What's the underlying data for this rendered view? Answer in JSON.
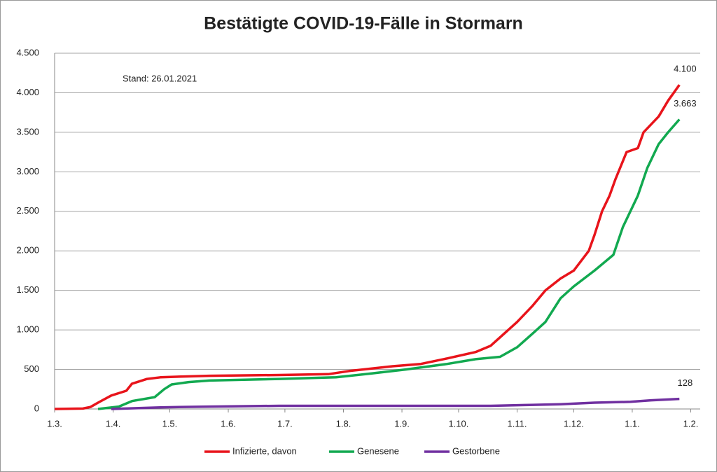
{
  "chart_data": {
    "type": "line",
    "title": "Bestätigte COVID-19-Fälle in Stormarn",
    "annotation": "Stand: 26.01.2021",
    "xlim": [
      0,
      342
    ],
    "xticks": [
      {
        "value": 0,
        "label": "1.3."
      },
      {
        "value": 31,
        "label": "1.4."
      },
      {
        "value": 61,
        "label": "1.5."
      },
      {
        "value": 92,
        "label": "1.6."
      },
      {
        "value": 122,
        "label": "1.7."
      },
      {
        "value": 153,
        "label": "1.8."
      },
      {
        "value": 184,
        "label": "1.9."
      },
      {
        "value": 214,
        "label": "1.10."
      },
      {
        "value": 245,
        "label": "1.11."
      },
      {
        "value": 275,
        "label": "1.12."
      },
      {
        "value": 306,
        "label": "1.1."
      },
      {
        "value": 337,
        "label": "1.2."
      }
    ],
    "ylim": [
      0,
      4500
    ],
    "yticks": [
      0,
      500,
      {
        "value": 1000,
        "label": "1.000"
      },
      {
        "value": 1500,
        "label": "1.500"
      },
      {
        "value": 2000,
        "label": "2.000"
      },
      {
        "value": 2500,
        "label": "2.500"
      },
      {
        "value": 3000,
        "label": "3.000"
      },
      {
        "value": 3500,
        "label": "3.500"
      },
      {
        "value": 4000,
        "label": "4.000"
      },
      {
        "value": 4500,
        "label": "4.500"
      }
    ],
    "grid": true,
    "legend": "bottom",
    "series": [
      {
        "name": "Infizierte, davon",
        "color": "#e8141b",
        "end_label": "4.100",
        "x": [
          0,
          15,
          19,
          23,
          30,
          38,
          41,
          49,
          56,
          67,
          82,
          119,
          145,
          156,
          179,
          194,
          208,
          223,
          231,
          238,
          245,
          253,
          260,
          268,
          275,
          283,
          286,
          290,
          294,
          297,
          303,
          309,
          312,
          320,
          325,
          331
        ],
        "values": [
          0,
          5,
          25,
          80,
          170,
          230,
          320,
          380,
          400,
          410,
          420,
          430,
          440,
          480,
          540,
          570,
          640,
          720,
          800,
          950,
          1100,
          1300,
          1500,
          1650,
          1750,
          2000,
          2200,
          2500,
          2700,
          2900,
          3250,
          3300,
          3500,
          3700,
          3900,
          4100
        ]
      },
      {
        "name": "Genesene",
        "color": "#12a950",
        "end_label": "3.663",
        "x": [
          23,
          34,
          41,
          53,
          58,
          62,
          71,
          82,
          119,
          149,
          168,
          186,
          208,
          223,
          236,
          245,
          253,
          260,
          264,
          268,
          275,
          286,
          296,
          301,
          309,
          314,
          320,
          325,
          331
        ],
        "values": [
          0,
          30,
          100,
          150,
          250,
          310,
          340,
          360,
          380,
          400,
          450,
          500,
          570,
          630,
          660,
          780,
          950,
          1100,
          1250,
          1400,
          1550,
          1750,
          1950,
          2300,
          2700,
          3050,
          3350,
          3500,
          3663
        ]
      },
      {
        "name": "Gestorbene",
        "color": "#7030a0",
        "end_label": "128",
        "x": [
          30,
          56,
          82,
          119,
          231,
          249,
          268,
          286,
          305,
          316,
          331
        ],
        "values": [
          0,
          20,
          30,
          40,
          40,
          50,
          60,
          80,
          90,
          110,
          128
        ]
      }
    ]
  }
}
